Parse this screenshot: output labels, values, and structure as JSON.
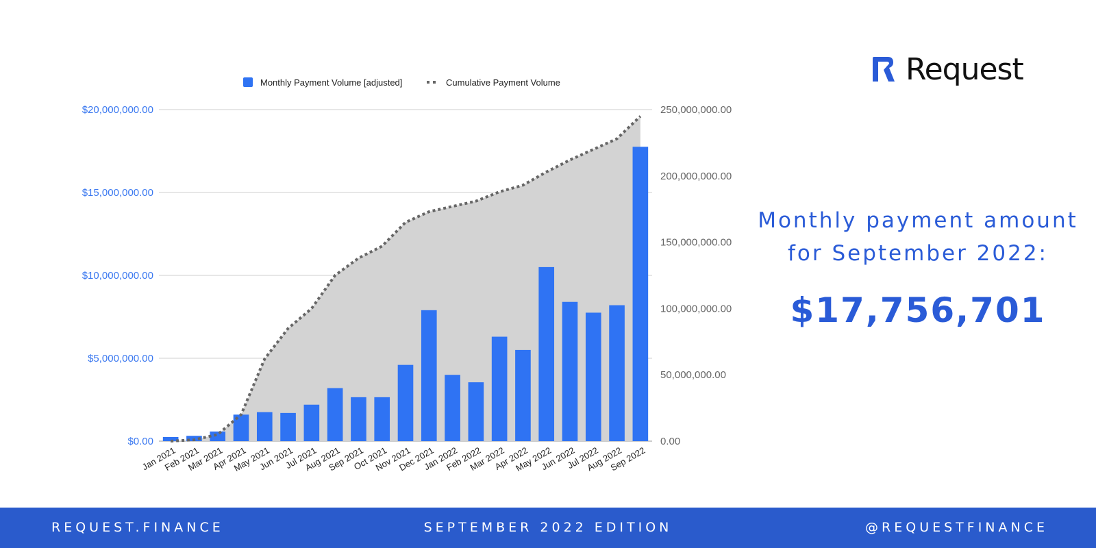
{
  "chart_data": {
    "type": "bar+line",
    "categories": [
      "Jan 2021",
      "Feb 2021",
      "Mar 2021",
      "Apr 2021",
      "May 2021",
      "Jun 2021",
      "Jul 2021",
      "Aug 2021",
      "Sep 2021",
      "Oct 2021",
      "Nov 2021",
      "Dec 2021",
      "Jan 2022",
      "Feb 2022",
      "Mar 2022",
      "Apr 2022",
      "May 2022",
      "Jun 2022",
      "Jul 2022",
      "Aug 2022",
      "Sep 2022"
    ],
    "series": [
      {
        "name": "Monthly Payment Volume [adjusted]",
        "type": "bar",
        "axis": "left",
        "color": "#2f73f3",
        "values": [
          250000,
          320000,
          580000,
          1600000,
          1750000,
          1700000,
          2200000,
          3200000,
          2650000,
          2650000,
          4600000,
          7900000,
          4000000,
          3550000,
          6300000,
          5500000,
          10500000,
          8400000,
          7750000,
          8200000,
          17756701
        ]
      },
      {
        "name": "Cumulative Payment Volume",
        "type": "line",
        "style": "dotted",
        "axis": "right",
        "color": "#666666",
        "area_color": "#d3d3d3",
        "values": [
          0,
          1000000,
          5000000,
          20000000,
          62000000,
          85000000,
          100000000,
          125000000,
          138000000,
          147000000,
          165000000,
          173000000,
          177000000,
          181000000,
          188000000,
          193000000,
          203000000,
          212000000,
          220000000,
          228000000,
          245000000
        ]
      }
    ],
    "y_left": {
      "ylim": [
        0,
        20000000
      ],
      "ticks": [
        0,
        5000000,
        10000000,
        15000000,
        20000000
      ],
      "tick_labels": [
        "$0.00",
        "$5,000,000.00",
        "$10,000,000.00",
        "$15,000,000.00",
        "$20,000,000.00"
      ],
      "color": "#3a78f0"
    },
    "y_right": {
      "ylim": [
        0,
        250000000
      ],
      "ticks": [
        0,
        50000000,
        100000000,
        150000000,
        200000000,
        250000000
      ],
      "tick_labels": [
        "0.00",
        "50,000,000.00",
        "100,000,000.00",
        "150,000,000.00",
        "200,000,000.00",
        "250,000,000.00"
      ],
      "color": "#666666"
    },
    "grid": true,
    "legend": "top"
  },
  "brand": {
    "name": "Request",
    "color": "#2a5bd7"
  },
  "headline": {
    "line1": "Monthly payment amount",
    "line2": "for September 2022:"
  },
  "amount": "$17,756,701",
  "footer": {
    "left": "REQUEST.FINANCE",
    "center": "SEPTEMBER 2022 EDITION",
    "right": "@REQUESTFINANCE"
  }
}
